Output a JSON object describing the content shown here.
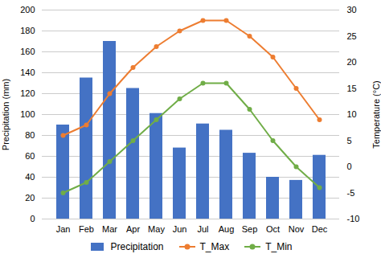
{
  "chart_data": {
    "type": "bar",
    "categories": [
      "Jan",
      "Feb",
      "Mar",
      "Apr",
      "May",
      "Jun",
      "Jul",
      "Aug",
      "Sep",
      "Oct",
      "Nov",
      "Dec"
    ],
    "series": [
      {
        "name": "Precipitation",
        "type": "bar",
        "color": "#4472C4",
        "values": [
          90,
          135,
          170,
          125,
          101,
          68,
          91,
          85,
          63,
          40,
          37,
          61
        ]
      },
      {
        "name": "T_Max",
        "type": "line",
        "marker": "circle",
        "axis": "y2",
        "color": "#ED7D31",
        "values": [
          6,
          8,
          14,
          19,
          23,
          26,
          28,
          28,
          25,
          21,
          15,
          9
        ]
      },
      {
        "name": "T_Min",
        "type": "line",
        "marker": "circle",
        "axis": "y2",
        "color": "#70AD47",
        "values": [
          -5,
          -3,
          1,
          5,
          9,
          13,
          16,
          16,
          11,
          5,
          0,
          -4
        ]
      }
    ],
    "ylabel": "Precipitation (mm)",
    "y2label": "Temperature (°C)",
    "ylim": [
      0,
      200
    ],
    "yticks": [
      0,
      20,
      40,
      60,
      80,
      100,
      120,
      140,
      160,
      180,
      200
    ],
    "y2lim": [
      -10,
      30
    ],
    "y2ticks": [
      -10,
      -5,
      0,
      5,
      10,
      15,
      20,
      25,
      30
    ],
    "grid": true,
    "legend": "bottom"
  }
}
